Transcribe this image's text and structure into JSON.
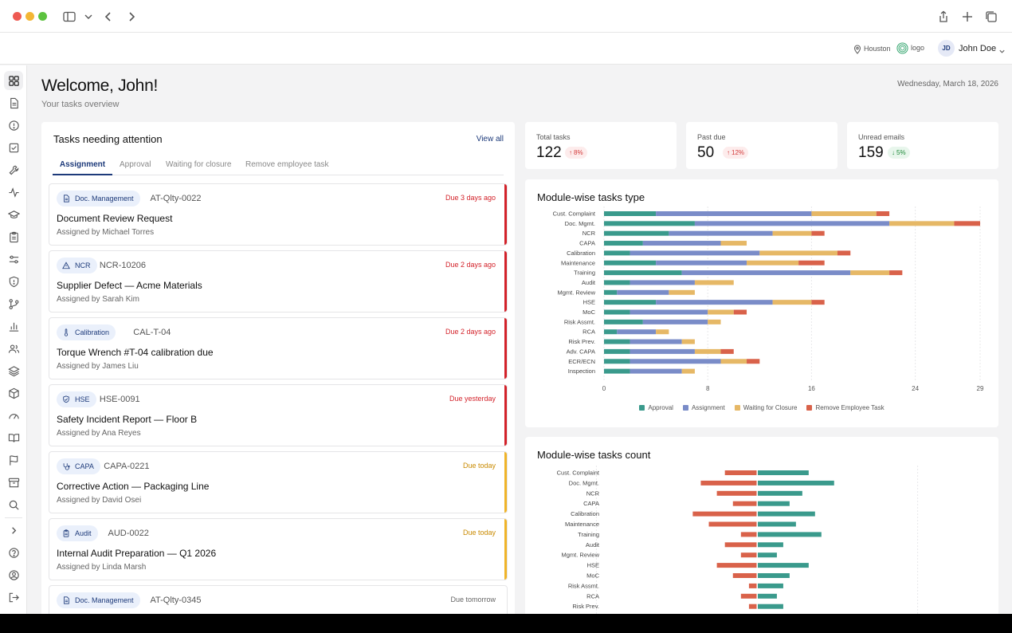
{
  "topbar": {
    "location": "Houston",
    "logo_text": "logo",
    "user_initials": "JD",
    "user_name": "John Doe"
  },
  "header": {
    "greeting": "Welcome, John!",
    "subtitle": "Your tasks overview",
    "date": "Wednesday, March 18, 2026"
  },
  "tasks_panel": {
    "title": "Tasks needing attention",
    "view_all": "View all",
    "tabs": [
      {
        "label": "Assignment"
      },
      {
        "label": "Approval"
      },
      {
        "label": "Waiting for closure"
      },
      {
        "label": "Remove employee task"
      }
    ],
    "items": [
      {
        "module": "Doc. Management",
        "icon": "document-icon",
        "code": "AT-Qlty-0022",
        "due": "Due 3 days ago",
        "status": "overdue",
        "title": "Document Review Request",
        "assigned": "Assigned by Michael Torres"
      },
      {
        "module": "NCR",
        "icon": "warning-icon",
        "code": "NCR-10206",
        "due": "Due 2 days ago",
        "status": "overdue",
        "title": "Supplier Defect — Acme Materials",
        "assigned": "Assigned by Sarah Kim"
      },
      {
        "module": "Calibration",
        "icon": "thermometer-icon",
        "code": "CAL-T-04",
        "due": "Due 2 days ago",
        "status": "overdue",
        "title": "Torque Wrench #T-04 calibration due",
        "assigned": "Assigned by James Liu"
      },
      {
        "module": "HSE",
        "icon": "shield-icon",
        "code": "HSE-0091",
        "due": "Due yesterday",
        "status": "overdue",
        "title": "Safety Incident Report — Floor B",
        "assigned": "Assigned by Ana Reyes"
      },
      {
        "module": "CAPA",
        "icon": "stethoscope-icon",
        "code": "CAPA-0221",
        "due": "Due today",
        "status": "today",
        "title": "Corrective Action — Packaging Line",
        "assigned": "Assigned by David Osei"
      },
      {
        "module": "Audit",
        "icon": "clipboard-icon",
        "code": "AUD-0022",
        "due": "Due today",
        "status": "today",
        "title": "Internal Audit Preparation — Q1 2026",
        "assigned": "Assigned by Linda Marsh"
      },
      {
        "module": "Doc. Management",
        "icon": "document-icon",
        "code": "AT-Qlty-0345",
        "due": "Due tomorrow",
        "status": "upcoming",
        "title": "",
        "assigned": ""
      }
    ]
  },
  "stats": [
    {
      "label": "Total tasks",
      "value": "122",
      "delta": "8%",
      "direction": "up",
      "color": "#d33a3a"
    },
    {
      "label": "Past due",
      "value": "50",
      "delta": "12%",
      "direction": "up",
      "color": "#d33a3a"
    },
    {
      "label": "Unread emails",
      "value": "159",
      "delta": "5%",
      "direction": "down",
      "color": "#1f8a3a"
    }
  ],
  "colors": {
    "approval": "#3a9a8c",
    "assignment": "#7a8cc8",
    "waiting": "#e6b866",
    "remove": "#d9624a",
    "overdue": "#d3222a",
    "today": "#f0b429",
    "upcoming": "#c9c9cc",
    "accent": "#1d3a7a"
  },
  "chart_data": [
    {
      "type": "bar",
      "orientation": "horizontal",
      "stacked": true,
      "title": "Module-wise tasks type",
      "categories": [
        "Cust. Complaint",
        "Doc. Mgmt.",
        "NCR",
        "CAPA",
        "Calibration",
        "Maintenance",
        "Training",
        "Audit",
        "Mgmt. Review",
        "HSE",
        "MoC",
        "Risk Assmt.",
        "RCA",
        "Risk Prev.",
        "Adv. CAPA",
        "ECR/ECN",
        "Inspection"
      ],
      "series": [
        {
          "name": "Approval",
          "values": [
            4,
            7,
            5,
            3,
            2,
            4,
            6,
            2,
            1,
            4,
            2,
            3,
            1,
            2,
            2,
            2,
            2
          ]
        },
        {
          "name": "Assignment",
          "values": [
            12,
            15,
            8,
            6,
            10,
            7,
            13,
            5,
            4,
            9,
            6,
            5,
            3,
            4,
            5,
            7,
            4
          ]
        },
        {
          "name": "Waiting for Closure",
          "values": [
            5,
            5,
            3,
            2,
            6,
            4,
            3,
            3,
            2,
            3,
            2,
            1,
            1,
            1,
            2,
            2,
            1
          ]
        },
        {
          "name": "Remove Employee Task",
          "values": [
            1,
            2,
            1,
            0,
            1,
            2,
            1,
            0,
            0,
            1,
            1,
            0,
            0,
            0,
            1,
            1,
            0
          ]
        }
      ],
      "xticks": [
        0,
        8,
        16,
        24,
        29
      ],
      "xlim": [
        0,
        29
      ],
      "grid": true,
      "legend": "bottom"
    },
    {
      "type": "bar",
      "orientation": "horizontal",
      "diverging": true,
      "title": "Module-wise tasks count",
      "categories": [
        "Cust. Complaint",
        "Doc. Mgmt.",
        "NCR",
        "CAPA",
        "Calibration",
        "Maintenance",
        "Training",
        "Audit",
        "Mgmt. Review",
        "HSE",
        "MoC",
        "Risk Assmt.",
        "RCA",
        "Risk Prev."
      ],
      "series": [
        {
          "side": "left",
          "values": [
            8,
            14,
            10,
            6,
            16,
            12,
            4,
            8,
            4,
            10,
            6,
            2,
            4,
            2
          ]
        },
        {
          "side": "right",
          "values": [
            16,
            24,
            14,
            10,
            18,
            12,
            20,
            8,
            6,
            16,
            10,
            8,
            6,
            8
          ]
        }
      ],
      "grid": true
    }
  ]
}
